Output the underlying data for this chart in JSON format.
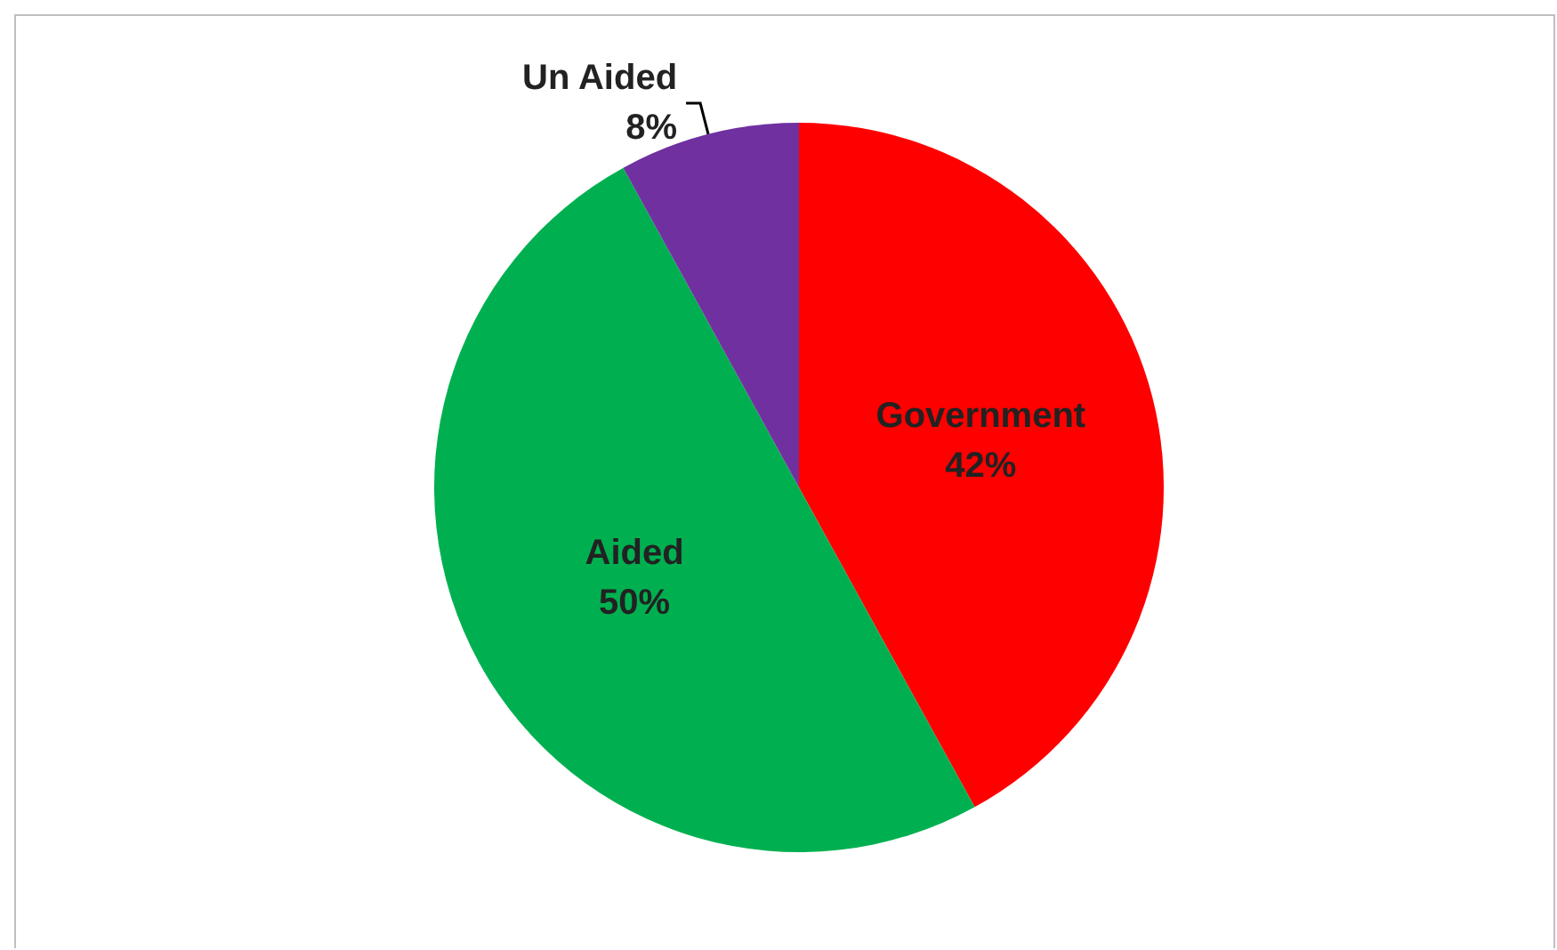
{
  "chart_data": {
    "type": "pie",
    "categories": [
      "Government",
      "Aided",
      "Un Aided"
    ],
    "values": [
      42,
      50,
      8
    ],
    "value_labels": [
      "42%",
      "50%",
      "8%"
    ],
    "colors": [
      "#ff0000",
      "#00b050",
      "#7030a0"
    ]
  }
}
